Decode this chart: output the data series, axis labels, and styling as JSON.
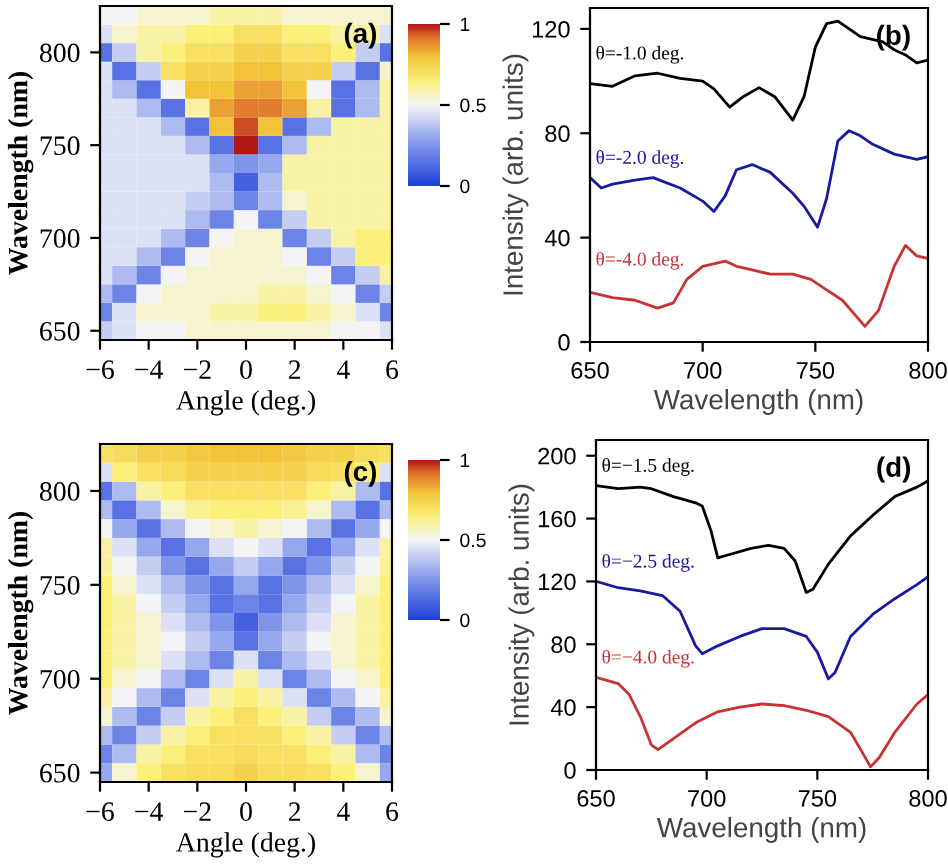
{
  "chart_data": [
    {
      "type": "heatmap",
      "xlabel": "Angle (deg.)",
      "ylabel": "Wavelength (nm)",
      "annotations": [
        "(a)"
      ],
      "x": [
        -6,
        -5,
        -4,
        -3,
        -2,
        -1,
        0,
        1,
        2,
        3,
        4,
        5,
        6
      ],
      "y_categories": [
        null,
        null,
        "800",
        null,
        null,
        null,
        null,
        "750",
        null,
        null,
        null,
        null,
        "700",
        null,
        null,
        null,
        null,
        "650"
      ],
      "xlim": [
        -6,
        6
      ],
      "xticks": [
        -6,
        -4,
        -2,
        0,
        2,
        4,
        6
      ],
      "clim": [
        0,
        1
      ],
      "cticks": [
        0,
        0.5,
        1
      ],
      "cells": [
        [
          0.5,
          0.5,
          0.55,
          0.55,
          0.55,
          0.6,
          0.6,
          0.6,
          0.55,
          0.55,
          0.55,
          0.55,
          0.55
        ],
        [
          0.45,
          0.55,
          0.6,
          0.6,
          0.65,
          0.65,
          0.7,
          0.7,
          0.65,
          0.65,
          0.6,
          0.6,
          0.45
        ],
        [
          0.15,
          0.4,
          0.6,
          0.65,
          0.7,
          0.7,
          0.75,
          0.75,
          0.7,
          0.7,
          0.65,
          0.4,
          0.15
        ],
        [
          0.45,
          0.15,
          0.4,
          0.7,
          0.75,
          0.75,
          0.8,
          0.8,
          0.75,
          0.75,
          0.4,
          0.15,
          0.55
        ],
        [
          0.45,
          0.35,
          0.15,
          0.5,
          0.8,
          0.8,
          0.85,
          0.85,
          0.8,
          0.5,
          0.15,
          0.35,
          0.6
        ],
        [
          0.45,
          0.45,
          0.35,
          0.15,
          0.6,
          0.85,
          0.9,
          0.9,
          0.85,
          0.6,
          0.15,
          0.35,
          0.6
        ],
        [
          0.45,
          0.45,
          0.45,
          0.35,
          0.15,
          0.8,
          0.95,
          0.8,
          0.15,
          0.35,
          0.6,
          0.6,
          0.6
        ],
        [
          0.45,
          0.45,
          0.45,
          0.45,
          0.35,
          0.15,
          1.0,
          0.15,
          0.35,
          0.6,
          0.6,
          0.6,
          0.6
        ],
        [
          0.45,
          0.45,
          0.45,
          0.45,
          0.45,
          0.3,
          0.25,
          0.3,
          0.6,
          0.6,
          0.6,
          0.6,
          0.6
        ],
        [
          0.45,
          0.45,
          0.45,
          0.45,
          0.45,
          0.35,
          0.1,
          0.35,
          0.6,
          0.6,
          0.6,
          0.6,
          0.6
        ],
        [
          0.45,
          0.45,
          0.45,
          0.45,
          0.4,
          0.35,
          0.2,
          0.35,
          0.55,
          0.6,
          0.6,
          0.6,
          0.6
        ],
        [
          0.45,
          0.45,
          0.45,
          0.45,
          0.35,
          0.2,
          0.5,
          0.2,
          0.4,
          0.6,
          0.6,
          0.6,
          0.6
        ],
        [
          0.45,
          0.45,
          0.45,
          0.35,
          0.2,
          0.5,
          0.55,
          0.55,
          0.2,
          0.4,
          0.6,
          0.65,
          0.65
        ],
        [
          0.45,
          0.45,
          0.35,
          0.2,
          0.5,
          0.55,
          0.55,
          0.55,
          0.5,
          0.2,
          0.4,
          0.65,
          0.65
        ],
        [
          0.45,
          0.35,
          0.2,
          0.5,
          0.55,
          0.55,
          0.55,
          0.55,
          0.55,
          0.5,
          0.2,
          0.4,
          0.6
        ],
        [
          0.35,
          0.2,
          0.5,
          0.55,
          0.55,
          0.55,
          0.55,
          0.6,
          0.6,
          0.55,
          0.5,
          0.2,
          0.4
        ],
        [
          0.2,
          0.45,
          0.55,
          0.55,
          0.55,
          0.6,
          0.6,
          0.65,
          0.65,
          0.6,
          0.55,
          0.45,
          0.2
        ],
        [
          0.4,
          0.45,
          0.5,
          0.5,
          0.55,
          0.55,
          0.55,
          0.55,
          0.55,
          0.55,
          0.5,
          0.5,
          0.45
        ]
      ]
    },
    {
      "type": "line",
      "xlabel": "Wavelength (nm)",
      "ylabel": "Intensity (arb. units)",
      "annotations": [
        "(b)"
      ],
      "xlim": [
        650,
        800
      ],
      "ylim": [
        0,
        128
      ],
      "xticks": [
        650,
        700,
        750,
        800
      ],
      "yticks": [
        0,
        40,
        80,
        120
      ],
      "marker": "none",
      "line_style": "solid",
      "grid": false,
      "legend": false,
      "series": [
        {
          "name": "θ=-1.0 deg.",
          "color": "#000000",
          "x": [
            650,
            660,
            670,
            680,
            690,
            700,
            705,
            712,
            718,
            725,
            732,
            740,
            745,
            750,
            755,
            760,
            765,
            770,
            780,
            785,
            790,
            795,
            800
          ],
          "values": [
            99,
            98,
            102,
            103,
            101,
            100,
            97,
            90,
            94,
            97.5,
            94,
            85,
            94,
            113,
            122,
            123,
            120,
            117,
            115,
            112,
            110,
            107,
            108
          ]
        },
        {
          "name": "θ=-2.0 deg.",
          "color": "#1a1aa0",
          "x": [
            650,
            655,
            660,
            670,
            678,
            690,
            700,
            705,
            710,
            715,
            722,
            730,
            740,
            745,
            751,
            755,
            760,
            765,
            770,
            775,
            785,
            795,
            800
          ],
          "values": [
            63,
            59,
            60.5,
            62,
            63,
            59,
            54,
            50,
            56,
            66,
            68,
            65,
            57,
            52,
            44,
            55,
            77,
            81,
            79,
            76,
            72,
            70,
            71
          ]
        },
        {
          "name": "θ=-4.0 deg.",
          "color": "#c83232",
          "x": [
            650,
            660,
            670,
            680,
            687,
            693,
            700,
            710,
            715,
            720,
            730,
            740,
            748,
            755,
            762,
            768,
            772,
            778,
            785,
            790,
            795,
            800
          ],
          "values": [
            19,
            17,
            16,
            13,
            15,
            24,
            29,
            31,
            29,
            28,
            26,
            26,
            24,
            20,
            16,
            10,
            6,
            12,
            29,
            37,
            33,
            32
          ]
        }
      ]
    },
    {
      "type": "heatmap",
      "xlabel": "Angle (deg.)",
      "ylabel": "Wavelength (nm)",
      "annotations": [
        "(c)"
      ],
      "x": [
        -6,
        -5,
        -4,
        -3,
        -2,
        -1,
        0,
        1,
        2,
        3,
        4,
        5,
        6
      ],
      "y_categories": [
        null,
        null,
        "800",
        null,
        null,
        null,
        null,
        "750",
        null,
        null,
        null,
        null,
        "700",
        null,
        null,
        null,
        null,
        "650"
      ],
      "xlim": [
        -6,
        6
      ],
      "xticks": [
        -6,
        -4,
        -2,
        0,
        2,
        4,
        6
      ],
      "clim": [
        0,
        1
      ],
      "cticks": [
        0,
        0.5,
        1
      ],
      "cells": [
        [
          0.7,
          0.72,
          0.75,
          0.75,
          0.78,
          0.8,
          0.8,
          0.8,
          0.78,
          0.75,
          0.75,
          0.72,
          0.7
        ],
        [
          0.45,
          0.65,
          0.7,
          0.72,
          0.75,
          0.75,
          0.75,
          0.75,
          0.75,
          0.72,
          0.7,
          0.65,
          0.45
        ],
        [
          0.15,
          0.35,
          0.6,
          0.65,
          0.7,
          0.7,
          0.7,
          0.7,
          0.7,
          0.65,
          0.6,
          0.35,
          0.15
        ],
        [
          0.35,
          0.15,
          0.35,
          0.55,
          0.62,
          0.65,
          0.65,
          0.65,
          0.62,
          0.55,
          0.35,
          0.15,
          0.35
        ],
        [
          0.5,
          0.3,
          0.15,
          0.35,
          0.5,
          0.55,
          0.6,
          0.55,
          0.5,
          0.35,
          0.15,
          0.3,
          0.5
        ],
        [
          0.6,
          0.45,
          0.3,
          0.15,
          0.3,
          0.45,
          0.5,
          0.45,
          0.3,
          0.15,
          0.3,
          0.45,
          0.6
        ],
        [
          0.62,
          0.5,
          0.4,
          0.25,
          0.15,
          0.3,
          0.4,
          0.3,
          0.15,
          0.25,
          0.4,
          0.5,
          0.62
        ],
        [
          0.65,
          0.55,
          0.45,
          0.35,
          0.25,
          0.15,
          0.3,
          0.15,
          0.25,
          0.35,
          0.45,
          0.55,
          0.65
        ],
        [
          0.65,
          0.6,
          0.5,
          0.4,
          0.3,
          0.15,
          0.2,
          0.15,
          0.3,
          0.4,
          0.5,
          0.6,
          0.65
        ],
        [
          0.65,
          0.6,
          0.55,
          0.45,
          0.35,
          0.25,
          0.1,
          0.25,
          0.35,
          0.45,
          0.55,
          0.6,
          0.65
        ],
        [
          0.65,
          0.6,
          0.55,
          0.5,
          0.4,
          0.3,
          0.15,
          0.3,
          0.4,
          0.5,
          0.55,
          0.6,
          0.65
        ],
        [
          0.65,
          0.6,
          0.55,
          0.45,
          0.35,
          0.2,
          0.45,
          0.2,
          0.35,
          0.45,
          0.55,
          0.6,
          0.65
        ],
        [
          0.65,
          0.55,
          0.5,
          0.35,
          0.2,
          0.45,
          0.6,
          0.45,
          0.2,
          0.35,
          0.5,
          0.55,
          0.65
        ],
        [
          0.6,
          0.5,
          0.35,
          0.2,
          0.45,
          0.6,
          0.65,
          0.6,
          0.45,
          0.2,
          0.35,
          0.5,
          0.6
        ],
        [
          0.55,
          0.35,
          0.2,
          0.4,
          0.6,
          0.65,
          0.7,
          0.65,
          0.6,
          0.4,
          0.2,
          0.35,
          0.55
        ],
        [
          0.35,
          0.2,
          0.4,
          0.6,
          0.65,
          0.7,
          0.7,
          0.7,
          0.65,
          0.6,
          0.4,
          0.2,
          0.35
        ],
        [
          0.2,
          0.35,
          0.6,
          0.65,
          0.7,
          0.7,
          0.72,
          0.7,
          0.7,
          0.65,
          0.6,
          0.35,
          0.2
        ],
        [
          0.3,
          0.55,
          0.65,
          0.7,
          0.72,
          0.72,
          0.75,
          0.72,
          0.72,
          0.7,
          0.65,
          0.55,
          0.3
        ]
      ]
    },
    {
      "type": "line",
      "xlabel": "Wavelength (nm)",
      "ylabel": "Intensity (arb. units)",
      "annotations": [
        "(d)"
      ],
      "xlim": [
        650,
        800
      ],
      "ylim": [
        0,
        210
      ],
      "xticks": [
        650,
        700,
        750,
        800
      ],
      "yticks": [
        0,
        40,
        80,
        120,
        160,
        200
      ],
      "marker": "none",
      "line_style": "solid",
      "grid": false,
      "legend": false,
      "series": [
        {
          "name": "θ=−1.5 deg.",
          "color": "#000000",
          "x": [
            650,
            660,
            670,
            675,
            685,
            695,
            698,
            702,
            705,
            710,
            720,
            728,
            735,
            740,
            745,
            748,
            755,
            765,
            775,
            785,
            795,
            800
          ],
          "values": [
            181,
            179,
            180,
            179,
            174,
            170,
            168,
            152,
            135,
            137,
            141,
            143,
            141,
            133,
            113,
            115,
            131,
            149,
            162,
            174,
            180,
            184
          ]
        },
        {
          "name": "θ=−2.5 deg.",
          "color": "#1a1aa0",
          "x": [
            650,
            660,
            670,
            680,
            688,
            695,
            698,
            705,
            715,
            725,
            735,
            745,
            750,
            755,
            758,
            765,
            775,
            785,
            795,
            800
          ],
          "values": [
            120,
            116,
            114,
            111,
            101,
            79,
            74,
            79,
            85,
            90,
            90,
            85,
            75,
            58,
            62,
            85,
            99,
            109,
            118,
            123
          ]
        },
        {
          "name": "θ=−4.0 deg.",
          "color": "#c83232",
          "x": [
            650,
            660,
            665,
            670,
            675,
            678,
            685,
            695,
            705,
            715,
            725,
            735,
            745,
            755,
            765,
            770,
            774,
            778,
            785,
            795,
            800
          ],
          "values": [
            59,
            55,
            48,
            34,
            16,
            13,
            20,
            30,
            37,
            40,
            42,
            41,
            38,
            34,
            24,
            12,
            2,
            8,
            24,
            42,
            48
          ]
        }
      ]
    }
  ]
}
